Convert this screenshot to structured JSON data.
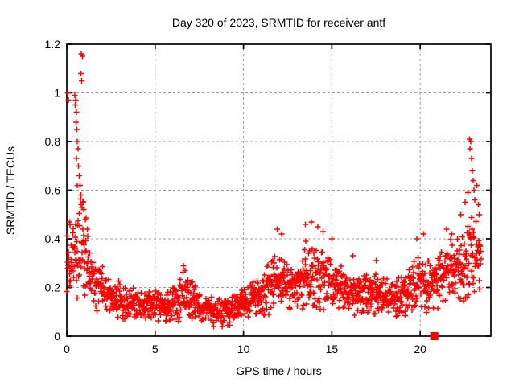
{
  "chart_data": {
    "type": "scatter",
    "title": "Day 320 of 2023, SRMTID for receiver antf",
    "xlabel": "GPS time / hours",
    "ylabel": "SRMTID / TECUs",
    "xlim": [
      0,
      24
    ],
    "ylim": [
      0,
      1.2
    ],
    "xticks": {
      "values": [
        0,
        5,
        10,
        15,
        20
      ],
      "labels": [
        "0",
        "5",
        "10",
        "15",
        "20"
      ]
    },
    "yticks": {
      "values": [
        0,
        0.2,
        0.4,
        0.6,
        0.8,
        1,
        1.2
      ],
      "labels": [
        "0",
        "0.2",
        "0.4",
        "0.6",
        "0.8",
        "1",
        "1.2"
      ]
    },
    "grid": {
      "show": true,
      "color": "#9b9b9b",
      "dash": [
        3,
        3
      ]
    },
    "background": "#ffffff",
    "border_color": "#000000",
    "legend": "none",
    "series": [
      {
        "name": "srmtid",
        "marker": "plus",
        "color": "#ff0000",
        "marker_size": 7,
        "summary": "Dense SRMTID time series: background band ~0.05-0.3 TECU, spike to 1.16 near 0.9 h, bumps to ~0.45 at 12-15 h, rise to 0.81 near 22.8-23 h; data span 0 to ~23.45 h",
        "points_per_hour": 64,
        "seed": 20230320,
        "envelope": {
          "xstart": 0,
          "xend": 23.45,
          "x": [
            0,
            0.3,
            0.6,
            0.9,
            1.2,
            1.6,
            2,
            2.5,
            3,
            4,
            5,
            6,
            6.6,
            7.2,
            8,
            8.7,
            9.5,
            10,
            10.7,
            11.3,
            11.9,
            12.4,
            13,
            13.6,
            14.2,
            14.8,
            15.4,
            16,
            16.6,
            17.3,
            18,
            18.6,
            19.2,
            19.8,
            20.4,
            21,
            21.6,
            22.1,
            22.6,
            23,
            23.45
          ],
          "mean": [
            0.3,
            0.32,
            0.36,
            0.4,
            0.27,
            0.21,
            0.19,
            0.16,
            0.14,
            0.12,
            0.12,
            0.13,
            0.16,
            0.13,
            0.1,
            0.09,
            0.11,
            0.13,
            0.15,
            0.18,
            0.23,
            0.21,
            0.2,
            0.24,
            0.23,
            0.21,
            0.19,
            0.17,
            0.16,
            0.17,
            0.15,
            0.15,
            0.17,
            0.21,
            0.2,
            0.22,
            0.25,
            0.27,
            0.3,
            0.32,
            0.28
          ],
          "spread": [
            0.1,
            0.11,
            0.14,
            0.16,
            0.1,
            0.07,
            0.06,
            0.05,
            0.05,
            0.04,
            0.04,
            0.05,
            0.06,
            0.05,
            0.04,
            0.035,
            0.04,
            0.05,
            0.05,
            0.07,
            0.08,
            0.07,
            0.07,
            0.09,
            0.09,
            0.08,
            0.07,
            0.06,
            0.06,
            0.06,
            0.05,
            0.055,
            0.06,
            0.08,
            0.07,
            0.08,
            0.09,
            0.1,
            0.12,
            0.13,
            0.11
          ]
        },
        "outliers": [
          [
            0.05,
            1.0
          ],
          [
            0.1,
            0.97
          ],
          [
            0.15,
            0.47
          ],
          [
            0.82,
            1.16
          ],
          [
            0.88,
            1.15
          ],
          [
            0.8,
            1.08
          ],
          [
            0.84,
            1.05
          ],
          [
            0.45,
            0.99
          ],
          [
            0.5,
            0.97
          ],
          [
            0.48,
            0.95
          ],
          [
            0.55,
            0.92
          ],
          [
            0.52,
            0.88
          ],
          [
            0.58,
            0.85
          ],
          [
            0.6,
            0.8
          ],
          [
            0.63,
            0.77
          ],
          [
            0.55,
            0.73
          ],
          [
            0.65,
            0.7
          ],
          [
            0.7,
            0.66
          ],
          [
            0.6,
            0.62
          ],
          [
            0.75,
            0.62
          ],
          [
            0.8,
            0.58
          ],
          [
            0.9,
            0.55
          ],
          [
            0.95,
            0.52
          ],
          [
            1.05,
            0.48
          ],
          [
            1.15,
            0.44
          ],
          [
            6.6,
            0.29
          ],
          [
            6.7,
            0.27
          ],
          [
            8.3,
            0.04
          ],
          [
            8.8,
            0.04
          ],
          [
            11.9,
            0.44
          ],
          [
            12.15,
            0.42
          ],
          [
            13.5,
            0.46
          ],
          [
            13.85,
            0.47
          ],
          [
            14.2,
            0.45
          ],
          [
            14.5,
            0.43
          ],
          [
            15.0,
            0.4
          ],
          [
            16.2,
            0.33
          ],
          [
            17.5,
            0.31
          ],
          [
            19.8,
            0.4
          ],
          [
            20.2,
            0.42
          ],
          [
            21.5,
            0.44
          ],
          [
            21.8,
            0.42
          ],
          [
            22.3,
            0.5
          ],
          [
            22.55,
            0.55
          ],
          [
            22.7,
            0.59
          ],
          [
            22.8,
            0.81
          ],
          [
            22.86,
            0.8
          ],
          [
            22.82,
            0.77
          ],
          [
            22.9,
            0.73
          ],
          [
            22.95,
            0.68
          ],
          [
            23.0,
            0.64
          ],
          [
            23.05,
            0.6
          ],
          [
            23.1,
            0.56
          ],
          [
            23.2,
            0.62
          ],
          [
            23.3,
            0.54
          ],
          [
            23.35,
            0.5
          ]
        ]
      },
      {
        "name": "flag-square",
        "marker": "filled-square",
        "color": "#ff0000",
        "marker_size": 10,
        "points": [
          [
            20.8,
            0
          ]
        ]
      }
    ]
  }
}
